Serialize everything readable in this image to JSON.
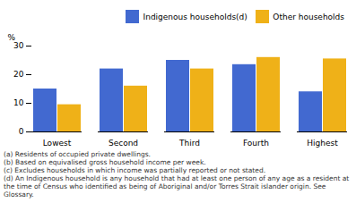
{
  "chart_data": {
    "type": "bar",
    "categories": [
      "Lowest",
      "Second",
      "Third",
      "Fourth",
      "Highest"
    ],
    "series": [
      {
        "name": "Indigenous households(d)",
        "values": [
          15.0,
          22.0,
          25.0,
          23.5,
          14.0
        ]
      },
      {
        "name": "Other households",
        "values": [
          9.5,
          16.0,
          22.0,
          26.0,
          25.5
        ]
      }
    ],
    "ylabel": "%",
    "ylim": [
      0,
      30
    ],
    "yticks": [
      0,
      10,
      20,
      30
    ],
    "grid": false,
    "legend": "upper right",
    "annotations": [
      "(a) Residents of occupied private dwellings.",
      "(b) Based on equivalised gross household income per week.",
      "(c) Excludes households in which income was partially reported or not stated.",
      "(d) An Indigenous household is any household that had at least one person of any age as a resident at the time of Census who identified as being of Aboriginal and/or Torres Strait islander origin. See Glossary."
    ]
  }
}
